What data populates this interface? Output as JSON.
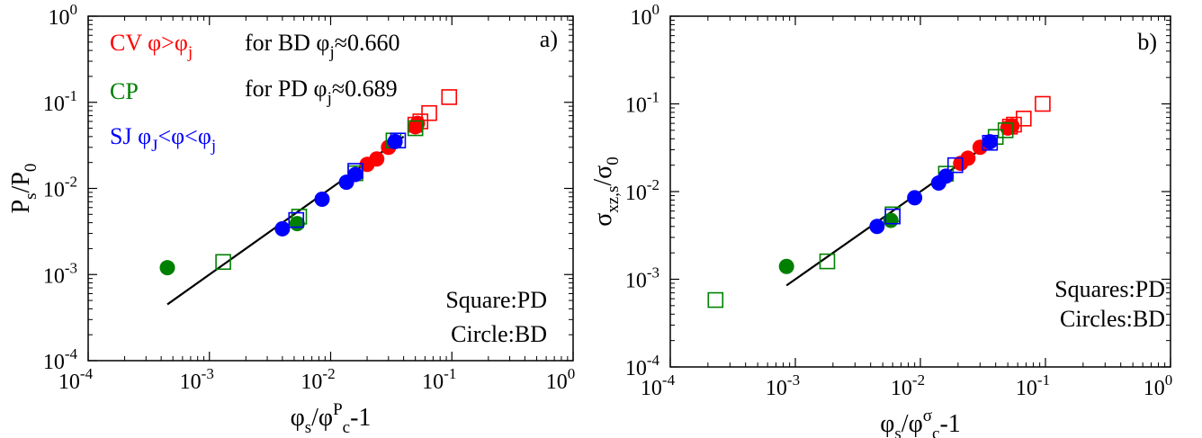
{
  "chart_data": [
    {
      "type": "scatter",
      "panel_label": "a)",
      "xscale": "log",
      "yscale": "log",
      "xlim": [
        0.0001,
        1
      ],
      "ylim": [
        0.0001,
        1
      ],
      "x_ticks": [
        {
          "base": "10",
          "exp": "-4"
        },
        {
          "base": "10",
          "exp": "-3"
        },
        {
          "base": "10",
          "exp": "-2"
        },
        {
          "base": "10",
          "exp": "-1"
        },
        {
          "base": "10",
          "exp": "0"
        }
      ],
      "y_ticks": [
        {
          "base": "10",
          "exp": "-4"
        },
        {
          "base": "10",
          "exp": "-3"
        },
        {
          "base": "10",
          "exp": "-2"
        },
        {
          "base": "10",
          "exp": "-1"
        },
        {
          "base": "10",
          "exp": "0"
        }
      ],
      "xlabel": {
        "main": "φ",
        "sub1": "s",
        "mid": "/φ",
        "sup": "P",
        "sub2": "c",
        "tail": "-1"
      },
      "ylabel": {
        "main": "P",
        "sub1": "s",
        "mid": "/P",
        "sub2": "0"
      },
      "legend": [
        {
          "main": "CV φ>φ",
          "sub": "j",
          "color": "#ff0000"
        },
        {
          "main": "CP",
          "sub": "",
          "color": "#008000"
        },
        {
          "main": "SJ φ",
          "sub": "J",
          "mid": "<φ<φ",
          "sub2": "j",
          "color": "#0000ff"
        }
      ],
      "notes": [
        {
          "main": "for BD φ",
          "sub": "j",
          "tail": "≈0.660"
        },
        {
          "main": "for PD φ",
          "sub": "j",
          "tail": "≈0.689"
        }
      ],
      "marker_key": [
        "Square:PD",
        "Circle:BD"
      ],
      "fit_line": [
        [
          0.00045,
          0.00045
        ],
        [
          0.04,
          0.04
        ]
      ],
      "series": [
        {
          "name": "CV φ>φj",
          "marker": "square",
          "color": "#ff0000",
          "points": [
            [
              0.05,
              0.055
            ],
            [
              0.055,
              0.06
            ],
            [
              0.065,
              0.075
            ],
            [
              0.095,
              0.115
            ]
          ]
        },
        {
          "name": "CV φ>φj",
          "marker": "circle",
          "color": "#ff0000",
          "points": [
            [
              0.02,
              0.019
            ],
            [
              0.024,
              0.022
            ],
            [
              0.03,
              0.03
            ],
            [
              0.05,
              0.052
            ],
            [
              0.052,
              0.057
            ]
          ]
        },
        {
          "name": "CP",
          "marker": "square",
          "color": "#008000",
          "points": [
            [
              0.0013,
              0.0014
            ],
            [
              0.0055,
              0.0047
            ],
            [
              0.016,
              0.015
            ],
            [
              0.033,
              0.036
            ],
            [
              0.05,
              0.05
            ]
          ]
        },
        {
          "name": "CP",
          "marker": "circle",
          "color": "#008000",
          "points": [
            [
              0.00045,
              0.0012
            ],
            [
              0.0053,
              0.0039
            ]
          ]
        },
        {
          "name": "SJ φJ<φ<φj",
          "marker": "square",
          "color": "#0000ff",
          "points": [
            [
              0.0052,
              0.0043
            ],
            [
              0.016,
              0.016
            ],
            [
              0.036,
              0.036
            ]
          ]
        },
        {
          "name": "SJ φJ<φ<φj",
          "marker": "circle",
          "color": "#0000ff",
          "points": [
            [
              0.004,
              0.0034
            ],
            [
              0.0085,
              0.0075
            ],
            [
              0.0135,
              0.0118
            ],
            [
              0.016,
              0.0145
            ],
            [
              0.034,
              0.035
            ]
          ]
        }
      ]
    },
    {
      "type": "scatter",
      "panel_label": "b)",
      "xscale": "log",
      "yscale": "log",
      "xlim": [
        0.0001,
        1
      ],
      "ylim": [
        0.0001,
        1
      ],
      "x_ticks": [
        {
          "base": "10",
          "exp": "-4"
        },
        {
          "base": "10",
          "exp": "-3"
        },
        {
          "base": "10",
          "exp": "-2"
        },
        {
          "base": "10",
          "exp": "-1"
        },
        {
          "base": "10",
          "exp": "0"
        }
      ],
      "y_ticks": [
        {
          "base": "10",
          "exp": "-4"
        },
        {
          "base": "10",
          "exp": "-3"
        },
        {
          "base": "10",
          "exp": "-2"
        },
        {
          "base": "10",
          "exp": "-1"
        },
        {
          "base": "10",
          "exp": "0"
        }
      ],
      "xlabel": {
        "main": "φ",
        "sub1": "s",
        "mid": "/φ",
        "sup": "σ",
        "sub2": "c",
        "tail": "-1"
      },
      "ylabel": {
        "main": "σ",
        "sub1": "xz,s",
        "mid": "/σ",
        "sub2": "0"
      },
      "marker_key": [
        "Squares:PD",
        "Circles:BD"
      ],
      "fit_line": [
        [
          0.00085,
          0.00085
        ],
        [
          0.04,
          0.04
        ]
      ],
      "series": [
        {
          "name": "CV φ>φj",
          "marker": "square",
          "color": "#ff0000",
          "points": [
            [
              0.052,
              0.055
            ],
            [
              0.056,
              0.058
            ],
            [
              0.067,
              0.068
            ],
            [
              0.095,
              0.1
            ]
          ]
        },
        {
          "name": "CV φ>φj",
          "marker": "circle",
          "color": "#ff0000",
          "points": [
            [
              0.021,
              0.021
            ],
            [
              0.024,
              0.024
            ],
            [
              0.03,
              0.032
            ],
            [
              0.05,
              0.053
            ],
            [
              0.054,
              0.056
            ]
          ]
        },
        {
          "name": "CP",
          "marker": "square",
          "color": "#008000",
          "points": [
            [
              0.00023,
              0.00058
            ],
            [
              0.0018,
              0.0016
            ],
            [
              0.006,
              0.0055
            ],
            [
              0.016,
              0.016
            ],
            [
              0.04,
              0.042
            ],
            [
              0.048,
              0.05
            ]
          ]
        },
        {
          "name": "CP",
          "marker": "circle",
          "color": "#008000",
          "points": [
            [
              0.00085,
              0.0014
            ],
            [
              0.0058,
              0.0047
            ]
          ]
        },
        {
          "name": "SJ φJ<φ<φj",
          "marker": "square",
          "color": "#0000ff",
          "points": [
            [
              0.006,
              0.0052
            ],
            [
              0.019,
              0.02
            ],
            [
              0.036,
              0.036
            ]
          ]
        },
        {
          "name": "SJ φJ<φ<φj",
          "marker": "circle",
          "color": "#0000ff",
          "points": [
            [
              0.0045,
              0.004
            ],
            [
              0.009,
              0.0085
            ],
            [
              0.014,
              0.0125
            ],
            [
              0.016,
              0.015
            ],
            [
              0.036,
              0.037
            ]
          ]
        }
      ]
    }
  ]
}
